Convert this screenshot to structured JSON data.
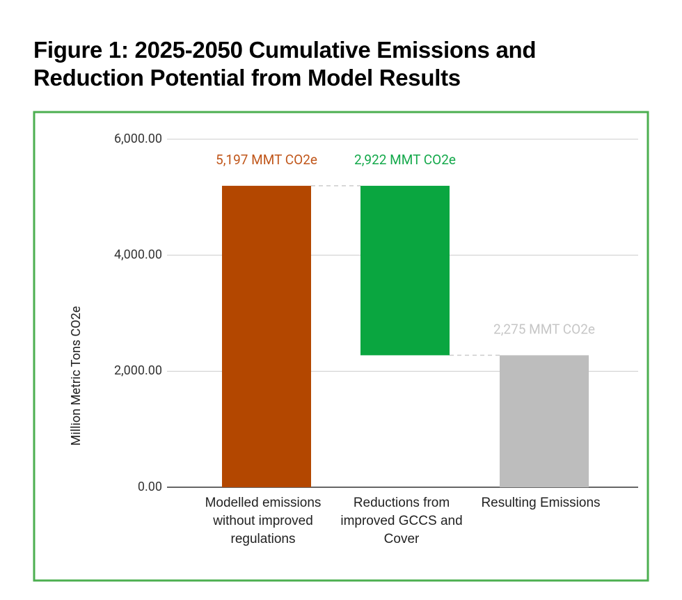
{
  "chart_data": {
    "type": "waterfall",
    "title": "Figure 1: 2025-2050 Cumulative Emissions and Reduction Potential from Model Results",
    "y_label": "Million Metric Tons CO2e",
    "categories": [
      "Modelled emissions without improved regulations",
      "Reductions from improved GCCS and Cover",
      "Resulting Emissions"
    ],
    "values": [
      5197,
      -2922,
      2275
    ],
    "value_labels": [
      "5,197 MMT CO2e",
      "2,922 MMT CO2e",
      "2,275 MMT CO2e"
    ],
    "measure": [
      "absolute",
      "relative",
      "total"
    ],
    "colors": [
      "#b34700",
      "#0aa640",
      "#bdbdbd"
    ],
    "label_colors": [
      "#c0561a",
      "#13a84a",
      "#c6c6c6"
    ],
    "ylim": [
      0,
      6000
    ],
    "yticks": [
      {
        "value": 0,
        "label": "0.00"
      },
      {
        "value": 2000,
        "label": "2,000.00"
      },
      {
        "value": 4000,
        "label": "4,000.00"
      },
      {
        "value": 6000,
        "label": "6,000.00"
      }
    ],
    "grid": true
  }
}
